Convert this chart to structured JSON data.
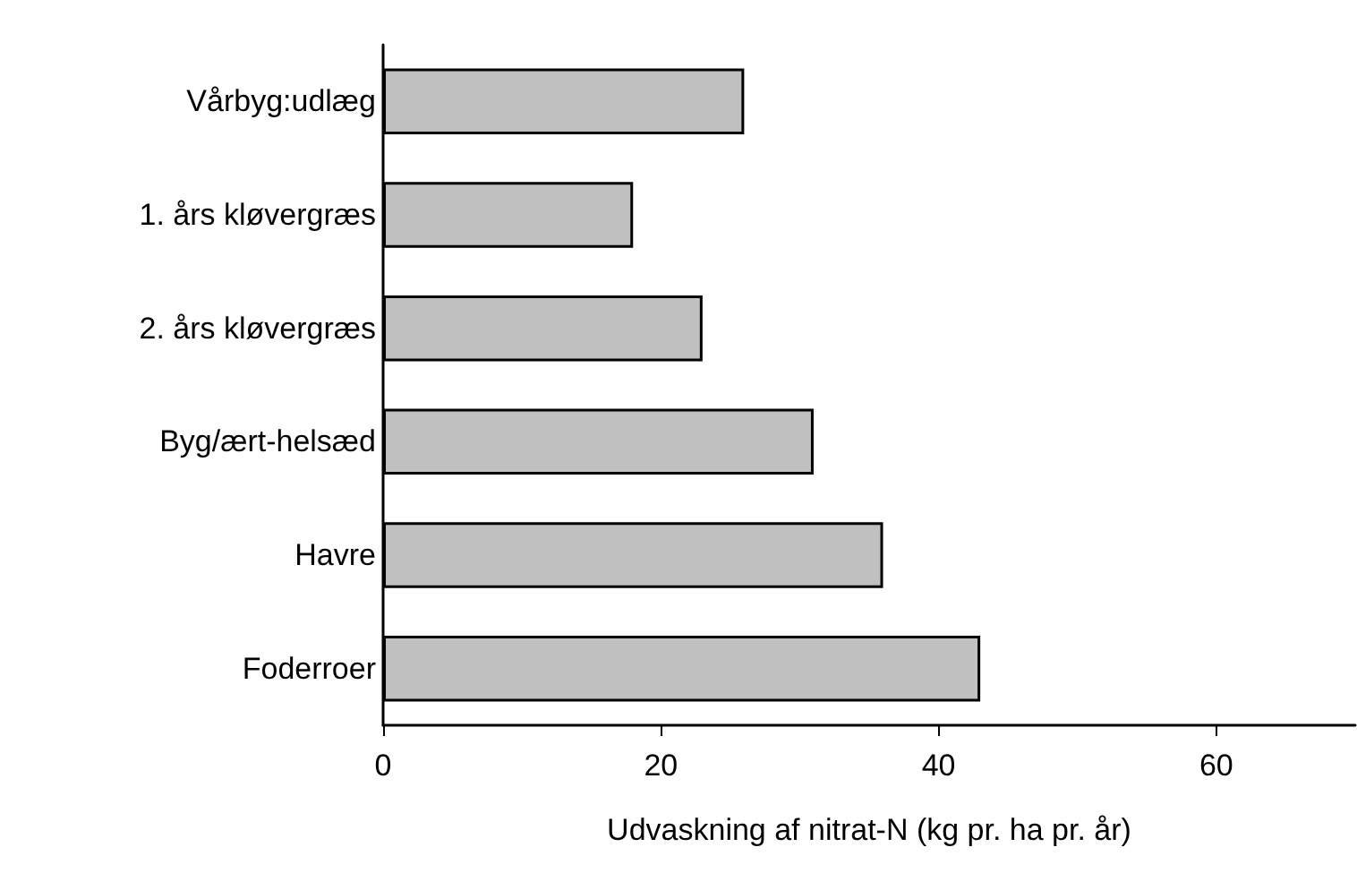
{
  "chart_data": {
    "type": "bar",
    "orientation": "horizontal",
    "categories": [
      "Vårbyg:udlæg",
      "1. års kløvergræs",
      "2. års kløvergræs",
      "Byg/ært-helsæd",
      "Havre",
      "Foderroer"
    ],
    "values": [
      26,
      18,
      23,
      31,
      36,
      43
    ],
    "color": "#c0c0c0",
    "xlabel": "Udvaskning af nitrat-N (kg pr. ha pr. år)",
    "xlim": [
      0,
      70
    ],
    "xticks": [
      0,
      20,
      40,
      60
    ],
    "grid": false
  }
}
